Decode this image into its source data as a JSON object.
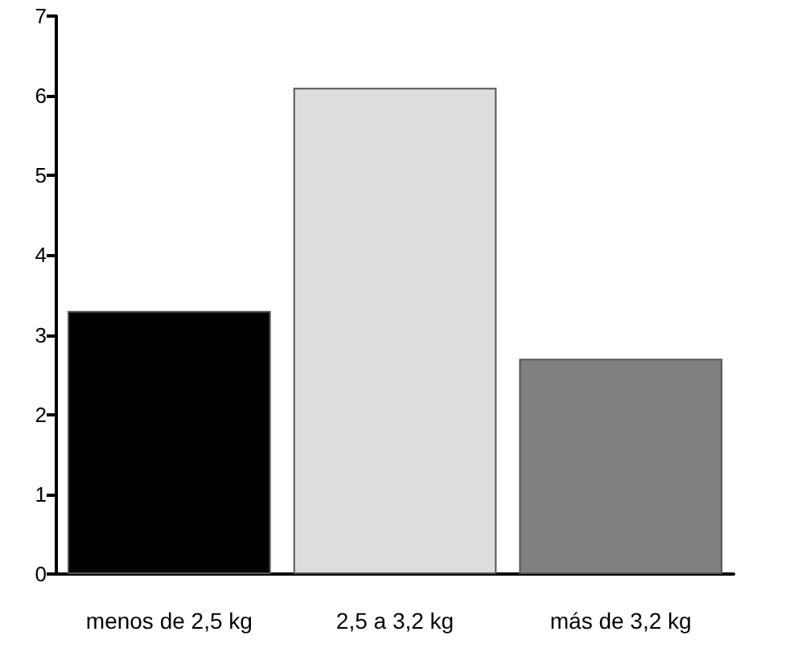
{
  "chart_data": {
    "type": "bar",
    "categories": [
      "menos de 2,5 kg",
      "2,5 a 3,2 kg",
      "más de 3,2 kg"
    ],
    "values": [
      3.3,
      6.1,
      2.7
    ],
    "colors": [
      "#000000",
      "#dddddd",
      "#808080"
    ],
    "ylim": [
      0,
      7
    ],
    "yticks": [
      0,
      1,
      2,
      3,
      4,
      5,
      6,
      7
    ]
  }
}
